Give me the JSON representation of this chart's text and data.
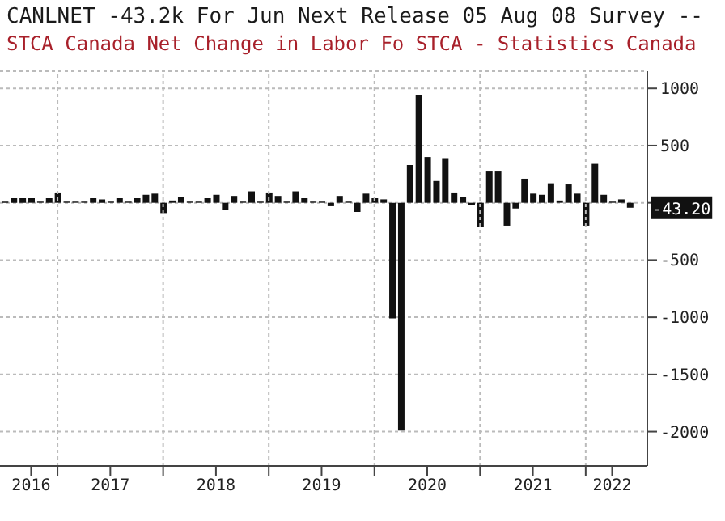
{
  "chart_data": {
    "type": "bar",
    "title": "CANLNET -43.2k For Jun  Next Release 05 Aug 08 Survey --",
    "subtitle": "STCA Canada Net Change in Labor Fo STCA - Statistics Canada",
    "x": [
      "2016-07",
      "2016-08",
      "2016-09",
      "2016-10",
      "2016-11",
      "2016-12",
      "2017-01",
      "2017-02",
      "2017-03",
      "2017-04",
      "2017-05",
      "2017-06",
      "2017-07",
      "2017-08",
      "2017-09",
      "2017-10",
      "2017-11",
      "2017-12",
      "2018-01",
      "2018-02",
      "2018-03",
      "2018-04",
      "2018-05",
      "2018-06",
      "2018-07",
      "2018-08",
      "2018-09",
      "2018-10",
      "2018-11",
      "2018-12",
      "2019-01",
      "2019-02",
      "2019-03",
      "2019-04",
      "2019-05",
      "2019-06",
      "2019-07",
      "2019-08",
      "2019-09",
      "2019-10",
      "2019-11",
      "2019-12",
      "2020-01",
      "2020-02",
      "2020-03",
      "2020-04",
      "2020-05",
      "2020-06",
      "2020-07",
      "2020-08",
      "2020-09",
      "2020-10",
      "2020-11",
      "2020-12",
      "2021-01",
      "2021-02",
      "2021-03",
      "2021-04",
      "2021-05",
      "2021-06",
      "2021-07",
      "2021-08",
      "2021-09",
      "2021-10",
      "2021-11",
      "2021-12",
      "2022-01",
      "2022-02",
      "2022-03",
      "2022-04",
      "2022-05",
      "2022-06"
    ],
    "values": [
      10,
      40,
      40,
      40,
      10,
      40,
      90,
      10,
      10,
      10,
      40,
      30,
      10,
      40,
      10,
      40,
      70,
      80,
      -90,
      20,
      50,
      10,
      10,
      40,
      70,
      -60,
      60,
      10,
      100,
      10,
      90,
      60,
      10,
      100,
      40,
      10,
      10,
      -30,
      60,
      10,
      -80,
      80,
      40,
      30,
      -1010,
      -1990,
      330,
      940,
      400,
      190,
      390,
      90,
      50,
      -20,
      -210,
      280,
      280,
      -200,
      -50,
      210,
      80,
      70,
      170,
      20,
      160,
      80,
      -200,
      340,
      70,
      10,
      30,
      -43.2
    ],
    "color": "#111111",
    "xlim": [
      "2016-06-15",
      "2022-08"
    ],
    "xticks": [
      {
        "value": "2016-10",
        "label": "2016"
      },
      {
        "value": "2017-01",
        "label": null
      },
      {
        "value": "2017-07",
        "label": "2017"
      },
      {
        "value": "2018-01",
        "label": null
      },
      {
        "value": "2018-07",
        "label": "2018"
      },
      {
        "value": "2019-01",
        "label": null
      },
      {
        "value": "2019-07",
        "label": "2019"
      },
      {
        "value": "2020-01",
        "label": null
      },
      {
        "value": "2020-07",
        "label": "2020"
      },
      {
        "value": "2021-01",
        "label": null
      },
      {
        "value": "2021-07",
        "label": "2021"
      },
      {
        "value": "2022-01",
        "label": null
      },
      {
        "value": "2022-04",
        "label": "2022"
      }
    ],
    "ylim": [
      -2300,
      1150
    ],
    "yticks": [
      1000,
      500,
      {
        "value": 0,
        "label": null
      },
      -500,
      -1000,
      -1500,
      -2000
    ],
    "grid": true,
    "annotations": [
      {
        "text": "-43.20",
        "x": "2022-06",
        "y": -43.2
      }
    ]
  }
}
